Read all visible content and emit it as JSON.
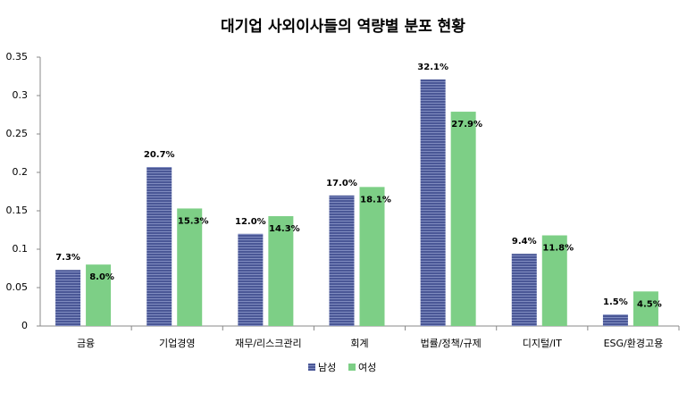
{
  "chart_data": {
    "type": "bar",
    "title": "대기업 사외이사들의 역량별 분포 현황",
    "categories": [
      "금융",
      "기업경영",
      "재무/리스크관리",
      "회계",
      "법률/정책/규제",
      "디지털/IT",
      "ESG/환경고용"
    ],
    "series": [
      {
        "name": "남성",
        "color": "#4a5796",
        "values": [
          0.073,
          0.207,
          0.12,
          0.17,
          0.321,
          0.094,
          0.015
        ],
        "value_labels": [
          "7.3%",
          "20.7%",
          "12.0%",
          "17.0%",
          "32.1%",
          "9.4%",
          "1.5%"
        ]
      },
      {
        "name": "여성",
        "color": "#7dcf86",
        "values": [
          0.08,
          0.153,
          0.143,
          0.181,
          0.279,
          0.118,
          0.045
        ],
        "value_labels": [
          "8.0%",
          "15.3%",
          "14.3%",
          "18.1%",
          "27.9%",
          "11.8%",
          "4.5%"
        ]
      }
    ],
    "ylim": [
      0,
      0.35
    ],
    "yticks": [
      0,
      0.05,
      0.1,
      0.15,
      0.2,
      0.25,
      0.3,
      0.35
    ],
    "legend": "bottom"
  }
}
